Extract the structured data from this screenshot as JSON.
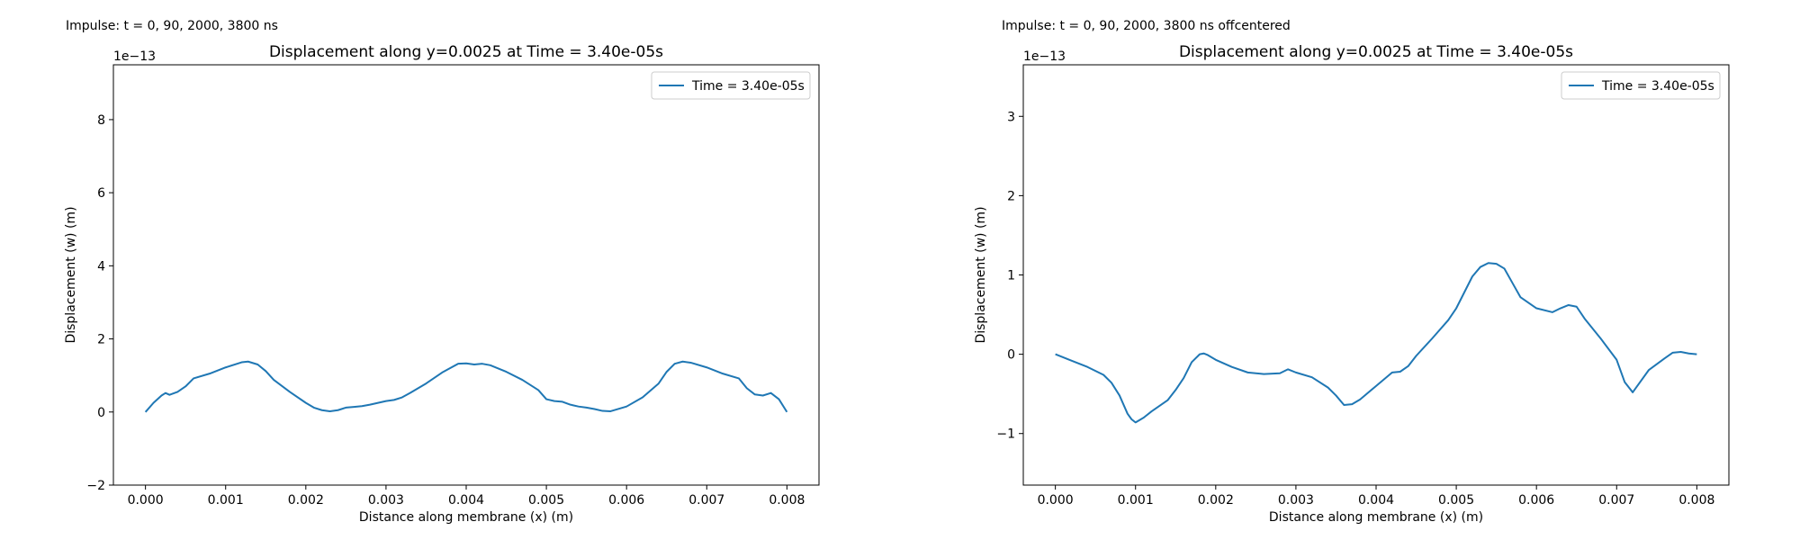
{
  "chart_data": [
    {
      "type": "line",
      "suptitle": "Impulse: t = 0, 90, 2000, 3800 ns",
      "title": "Displacement along y=0.0025 at Time = 3.40e-05s",
      "xlabel": "Distance along membrane (x) (m)",
      "ylabel": "Displacement (w) (m)",
      "offset_label": "1e−13",
      "xlim": [
        -0.0004,
        0.0084
      ],
      "ylim": [
        -2.0,
        9.5
      ],
      "xticks": [
        0.0,
        0.001,
        0.002,
        0.003,
        0.004,
        0.005,
        0.006,
        0.007,
        0.008
      ],
      "xtick_labels": [
        "0.000",
        "0.001",
        "0.002",
        "0.003",
        "0.004",
        "0.005",
        "0.006",
        "0.007",
        "0.008"
      ],
      "yticks": [
        -2,
        0,
        2,
        4,
        6,
        8
      ],
      "ytick_labels": [
        "−2",
        "0",
        "2",
        "4",
        "6",
        "8"
      ],
      "grid": false,
      "legend": "top-right",
      "series": [
        {
          "name": "Time = 3.40e-05s",
          "color": "#1f77b4",
          "x": [
            0.0,
            0.0001,
            0.0002,
            0.00025,
            0.0003,
            0.0004,
            0.0005,
            0.0006,
            0.0008,
            0.001,
            0.0012,
            0.00128,
            0.0014,
            0.0015,
            0.0016,
            0.0018,
            0.002,
            0.0021,
            0.0022,
            0.0023,
            0.0024,
            0.0025,
            0.0026,
            0.0027,
            0.0028,
            0.0029,
            0.003,
            0.0031,
            0.0032,
            0.0033,
            0.0035,
            0.0037,
            0.0038,
            0.0039,
            0.004,
            0.0041,
            0.0042,
            0.0043,
            0.0045,
            0.0047,
            0.0049,
            0.005,
            0.0051,
            0.0052,
            0.0053,
            0.0054,
            0.0055,
            0.0056,
            0.0057,
            0.0058,
            0.006,
            0.0062,
            0.0064,
            0.0065,
            0.0066,
            0.0067,
            0.0068,
            0.007,
            0.0072,
            0.0074,
            0.0075,
            0.0076,
            0.0077,
            0.0078,
            0.0079,
            0.008
          ],
          "y": [
            0.0,
            0.25,
            0.45,
            0.52,
            0.47,
            0.55,
            0.7,
            0.92,
            1.05,
            1.22,
            1.36,
            1.38,
            1.3,
            1.12,
            0.88,
            0.55,
            0.25,
            0.12,
            0.05,
            0.02,
            0.05,
            0.12,
            0.14,
            0.16,
            0.2,
            0.25,
            0.3,
            0.33,
            0.4,
            0.52,
            0.78,
            1.08,
            1.2,
            1.32,
            1.33,
            1.3,
            1.32,
            1.28,
            1.1,
            0.88,
            0.6,
            0.35,
            0.3,
            0.28,
            0.2,
            0.15,
            0.12,
            0.08,
            0.03,
            0.02,
            0.15,
            0.4,
            0.78,
            1.1,
            1.32,
            1.38,
            1.35,
            1.22,
            1.05,
            0.92,
            0.65,
            0.48,
            0.45,
            0.52,
            0.35,
            0.0
          ]
        }
      ]
    },
    {
      "type": "line",
      "suptitle": "Impulse: t = 0, 90, 2000, 3800 ns offcentered",
      "title": "Displacement along y=0.0025 at Time = 3.40e-05s",
      "xlabel": "Distance along membrane (x) (m)",
      "ylabel": "Displacement (w) (m)",
      "offset_label": "1e−13",
      "xlim": [
        -0.0004,
        0.0084
      ],
      "ylim": [
        -1.65,
        3.65
      ],
      "xticks": [
        0.0,
        0.001,
        0.002,
        0.003,
        0.004,
        0.005,
        0.006,
        0.007,
        0.008
      ],
      "xtick_labels": [
        "0.000",
        "0.001",
        "0.002",
        "0.003",
        "0.004",
        "0.005",
        "0.006",
        "0.007",
        "0.008"
      ],
      "yticks": [
        -1,
        0,
        1,
        2,
        3
      ],
      "ytick_labels": [
        "−1",
        "0",
        "1",
        "2",
        "3"
      ],
      "grid": false,
      "legend": "top-right",
      "series": [
        {
          "name": "Time = 3.40e-05s",
          "color": "#1f77b4",
          "x": [
            0.0,
            0.0002,
            0.0004,
            0.0006,
            0.0007,
            0.0008,
            0.0009,
            0.00095,
            0.001,
            0.00105,
            0.0011,
            0.0012,
            0.0014,
            0.0015,
            0.0016,
            0.0017,
            0.0018,
            0.00185,
            0.0019,
            0.002,
            0.0022,
            0.0024,
            0.0026,
            0.0028,
            0.0029,
            0.003,
            0.0032,
            0.0034,
            0.0035,
            0.0036,
            0.0037,
            0.0038,
            0.004,
            0.0042,
            0.0043,
            0.0044,
            0.0045,
            0.0047,
            0.0049,
            0.005,
            0.0051,
            0.0052,
            0.0053,
            0.0054,
            0.0055,
            0.0056,
            0.0057,
            0.0058,
            0.006,
            0.0062,
            0.0063,
            0.0064,
            0.0065,
            0.0066,
            0.0068,
            0.007,
            0.0071,
            0.0072,
            0.0074,
            0.0076,
            0.0077,
            0.0078,
            0.0079,
            0.008
          ],
          "y": [
            0.0,
            -0.08,
            -0.16,
            -0.26,
            -0.36,
            -0.52,
            -0.75,
            -0.82,
            -0.86,
            -0.83,
            -0.8,
            -0.72,
            -0.58,
            -0.45,
            -0.3,
            -0.1,
            0.0,
            0.01,
            -0.01,
            -0.07,
            -0.16,
            -0.23,
            -0.25,
            -0.24,
            -0.19,
            -0.23,
            -0.29,
            -0.42,
            -0.52,
            -0.64,
            -0.63,
            -0.57,
            -0.4,
            -0.23,
            -0.22,
            -0.15,
            -0.02,
            0.2,
            0.43,
            0.58,
            0.78,
            0.98,
            1.1,
            1.15,
            1.14,
            1.08,
            0.9,
            0.72,
            0.58,
            0.53,
            0.58,
            0.62,
            0.6,
            0.45,
            0.2,
            -0.07,
            -0.35,
            -0.48,
            -0.2,
            -0.05,
            0.02,
            0.03,
            0.01,
            0.0
          ]
        }
      ]
    }
  ]
}
